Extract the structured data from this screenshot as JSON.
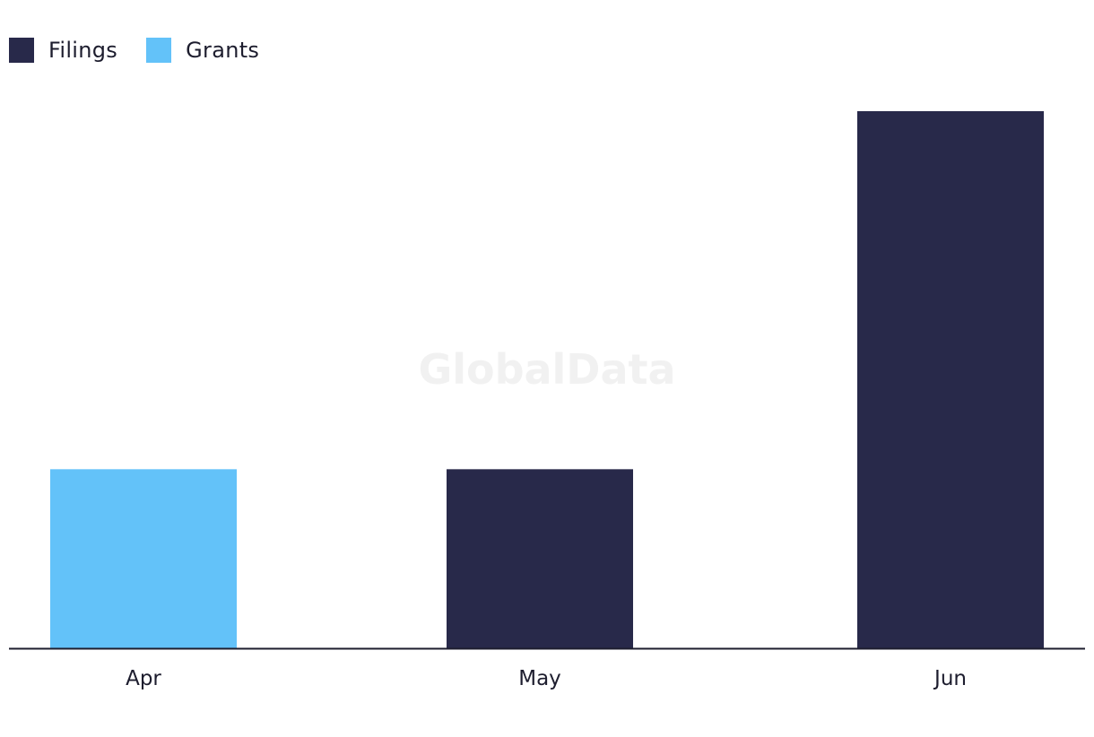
{
  "legend": {
    "items": [
      {
        "label": "Filings",
        "color": "#28294a"
      },
      {
        "label": "Grants",
        "color": "#63c2f9"
      }
    ]
  },
  "watermark": "GlobalData",
  "chart_data": {
    "type": "bar",
    "categories": [
      "Apr",
      "May",
      "Jun"
    ],
    "series": [
      {
        "name": "Filings",
        "values": [
          0,
          1,
          3
        ],
        "color": "#28294a"
      },
      {
        "name": "Grants",
        "values": [
          1,
          0,
          0
        ],
        "color": "#63c2f9"
      }
    ],
    "title": "",
    "xlabel": "",
    "ylabel": "",
    "ylim": [
      0,
      3
    ],
    "grid": false,
    "legend_position": "top-left"
  }
}
